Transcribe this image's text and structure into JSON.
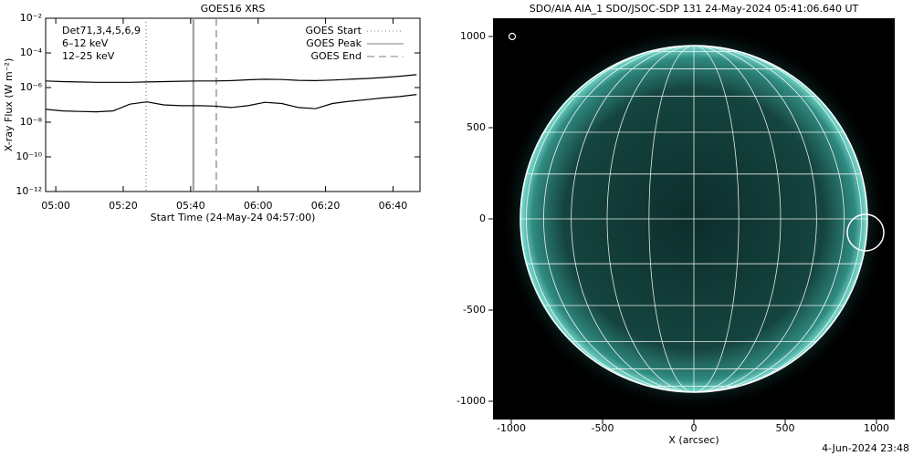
{
  "chart_data": [
    {
      "type": "line",
      "title": "GOES16 XRS",
      "xlabel": "Start Time (24-May-24 04:57:00)",
      "ylabel": "X-ray Flux (W m⁻²)",
      "log_y": true,
      "xlim": [
        297,
        408
      ],
      "ylim": [
        1e-12,
        0.01
      ],
      "xticks": [
        {
          "value": 300,
          "label": "05:00"
        },
        {
          "value": 320,
          "label": "05:20"
        },
        {
          "value": 340,
          "label": "05:40"
        },
        {
          "value": 360,
          "label": "06:00"
        },
        {
          "value": 380,
          "label": "06:20"
        },
        {
          "value": 400,
          "label": "06:40"
        }
      ],
      "yticks": [
        {
          "value": 1e-12,
          "label": "10⁻¹²"
        },
        {
          "value": 1e-10,
          "label": "10⁻¹⁰"
        },
        {
          "value": 1e-08,
          "label": "10⁻⁸"
        },
        {
          "value": 1e-06,
          "label": "10⁻⁶"
        },
        {
          "value": 0.0001,
          "label": "10⁻⁴"
        },
        {
          "value": 0.01,
          "label": "10⁻²"
        }
      ],
      "x": [
        297,
        302,
        307,
        312,
        317,
        322,
        327,
        332,
        337,
        342,
        347,
        352,
        357,
        362,
        367,
        372,
        377,
        382,
        387,
        392,
        397,
        402,
        407
      ],
      "series": [
        {
          "color": "#000000",
          "values": [
            2.4e-06,
            2.2e-06,
            2.1e-06,
            2e-06,
            2e-06,
            2e-06,
            2.1e-06,
            2.2e-06,
            2.3e-06,
            2.4e-06,
            2.4e-06,
            2.5e-06,
            2.8e-06,
            3e-06,
            2.9e-06,
            2.6e-06,
            2.5e-06,
            2.7e-06,
            3e-06,
            3.3e-06,
            3.8e-06,
            4.5e-06,
            5.5e-06
          ]
        },
        {
          "color": "#000000",
          "values": [
            5.5e-08,
            4.5e-08,
            4.2e-08,
            4e-08,
            4.5e-08,
            1.1e-07,
            1.5e-07,
            1e-07,
            9e-08,
            9e-08,
            8.5e-08,
            7e-08,
            9e-08,
            1.4e-07,
            1.2e-07,
            7e-08,
            6e-08,
            1.2e-07,
            1.6e-07,
            2e-07,
            2.5e-07,
            3e-07,
            4e-07
          ]
        }
      ],
      "annotations": [
        {
          "text": "Det71,3,4,5,6,9",
          "color": "#000000"
        },
        {
          "text": "6–12 keV",
          "color": "#e000e0"
        },
        {
          "text": "12–25 keV",
          "color": "#00d000"
        }
      ],
      "legend": "upper right",
      "markers": [
        {
          "name": "GOES Start",
          "value": 326.8,
          "dash": "dotted",
          "color": "#999999"
        },
        {
          "name": "GOES Peak",
          "value": 340.8,
          "dash": "solid",
          "color": "#999999"
        },
        {
          "name": "GOES End",
          "value": 347.6,
          "dash": "dashed",
          "color": "#999999"
        }
      ]
    },
    {
      "type": "image",
      "title": "SDO/AIA AIA_1 SDO/JSOC-SDP 131 24-May-2024 05:41:06.640 UT",
      "xlabel": "X (arcsec)",
      "xlim": [
        -1100,
        1100
      ],
      "ylim": [
        -1100,
        1100
      ],
      "xticks": [
        -1000,
        -500,
        0,
        500,
        1000
      ],
      "yticks": [
        -1000,
        -500,
        0,
        500,
        1000
      ],
      "solar_radius": 950,
      "flare": {
        "label": "AIA flare location",
        "x": 940,
        "y": -75
      },
      "footer": "4-Jun-2024 23:48"
    }
  ]
}
